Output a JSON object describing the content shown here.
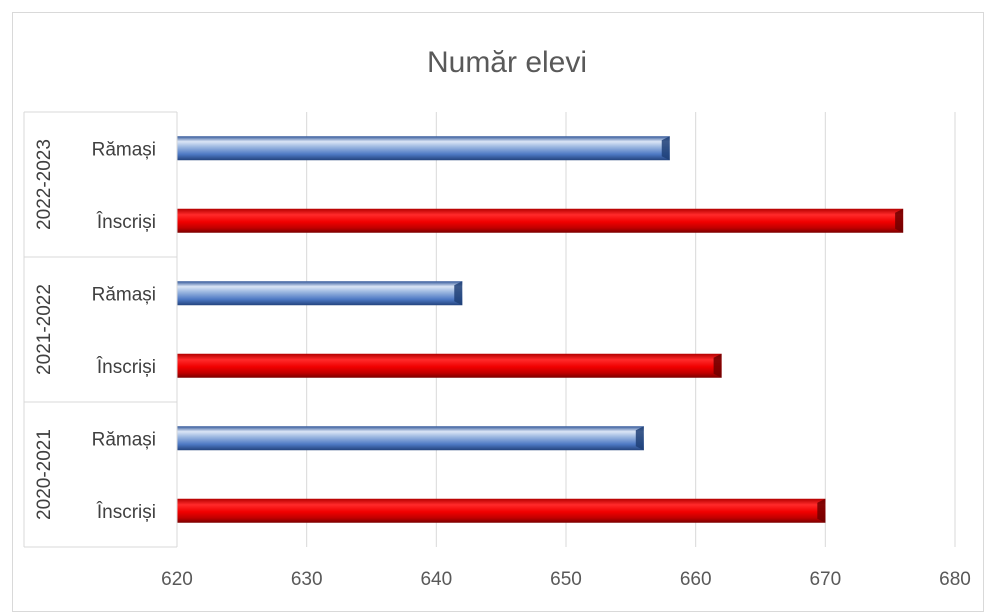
{
  "chart_data": {
    "type": "bar",
    "orientation": "horizontal",
    "title": "Număr elevi",
    "xlabel": "",
    "ylabel": "",
    "xlim": [
      620,
      680
    ],
    "x_ticks": [
      "620",
      "630",
      "640",
      "650",
      "660",
      "670",
      "680"
    ],
    "grid": true,
    "legend": "none",
    "groups": [
      {
        "label": "2022-2023",
        "bars": [
          {
            "category": "Rămași",
            "value": 658,
            "color": "#4472c4"
          },
          {
            "category": "Înscriși",
            "value": 676,
            "color": "#e00000"
          }
        ]
      },
      {
        "label": "2021-2022",
        "bars": [
          {
            "category": "Rămași",
            "value": 642,
            "color": "#4472c4"
          },
          {
            "category": "Înscriși",
            "value": 662,
            "color": "#e00000"
          }
        ]
      },
      {
        "label": "2020-2021",
        "bars": [
          {
            "category": "Rămași",
            "value": 656,
            "color": "#4472c4"
          },
          {
            "category": "Înscriși",
            "value": 670,
            "color": "#e00000"
          }
        ]
      }
    ]
  }
}
